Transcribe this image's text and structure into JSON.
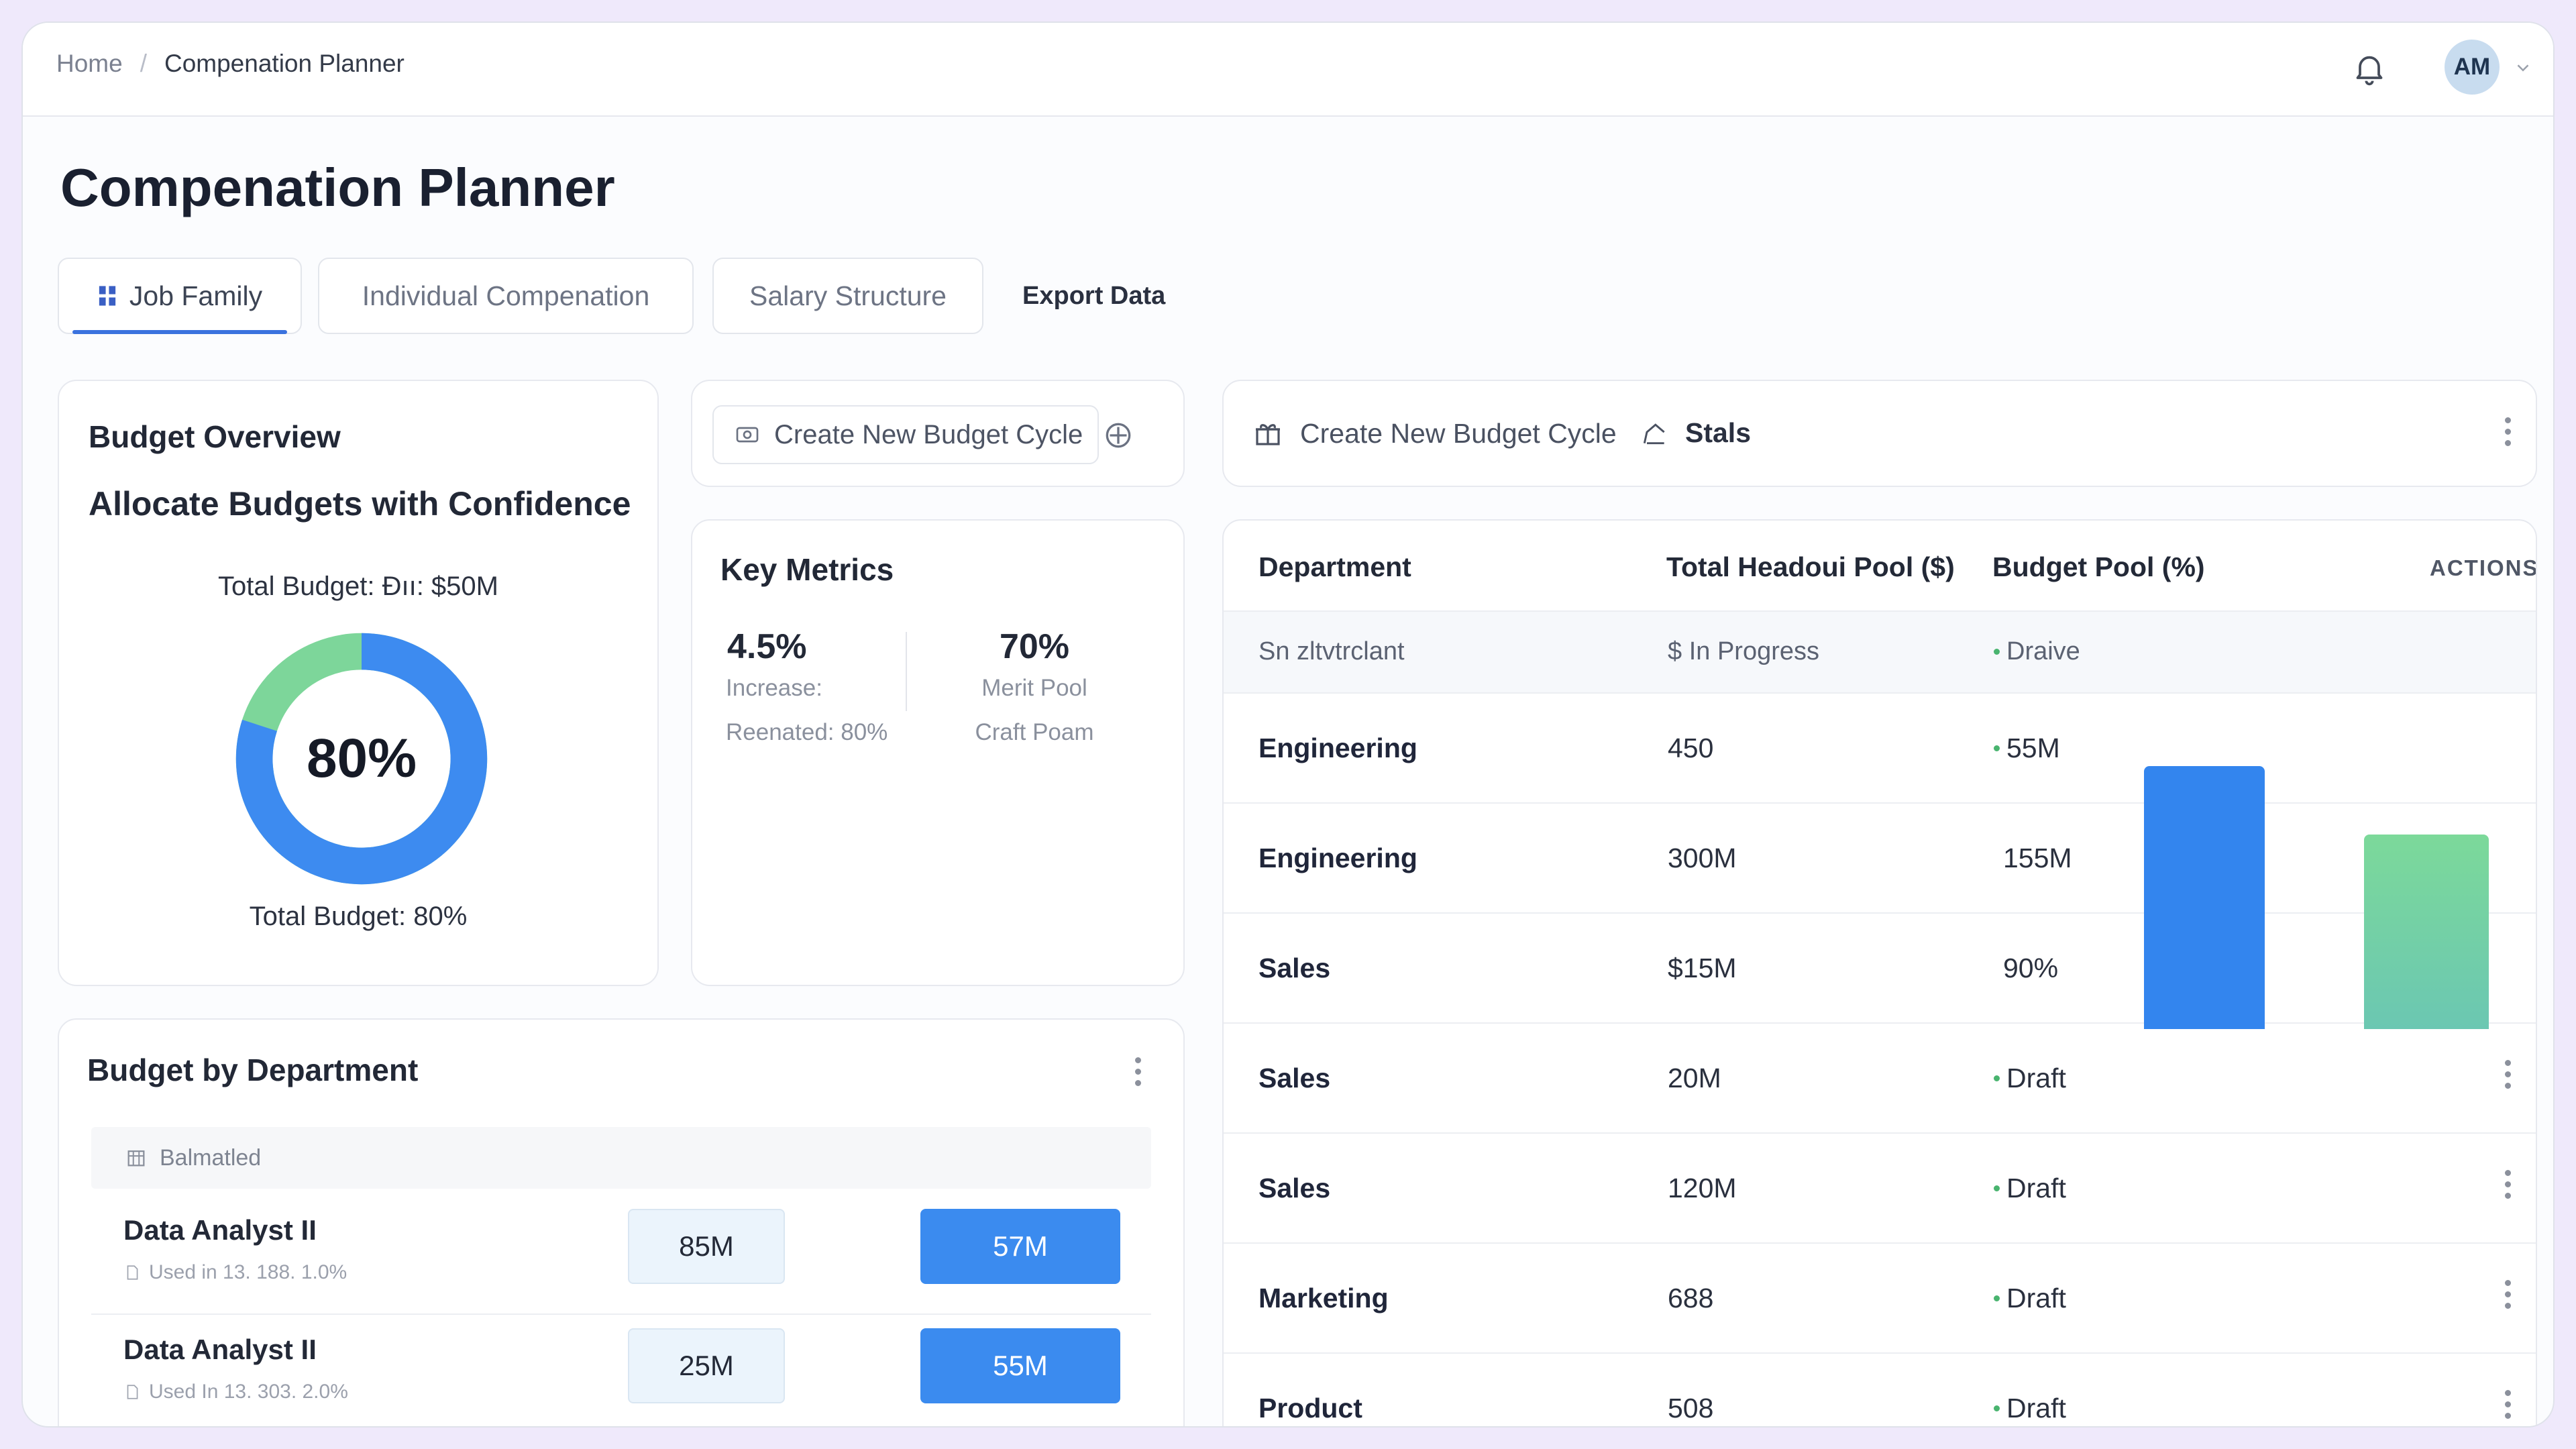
{
  "breadcrumb": {
    "home": "Home",
    "separator": "/",
    "current": "Compenation Planner"
  },
  "header": {
    "avatar_initials": "AM",
    "bell_icon": "bell-icon"
  },
  "page": {
    "title": "Compenation Planner"
  },
  "tabs": [
    {
      "label": "Job Family",
      "active": true,
      "icon": "grid-icon"
    },
    {
      "label": "Individual Compenation",
      "active": false
    },
    {
      "label": "Salary Structure",
      "active": false
    }
  ],
  "export_label": "Export Data",
  "budget_overview": {
    "title": "Budget Overview",
    "subtitle": "Allocate Budgets with Confidence",
    "total_label": "Total Budget: Đıı: $50M",
    "donut_value": "80%",
    "donut_fraction": 0.8,
    "footer": "Total Budget: 80%",
    "colors": {
      "primary": "#3d8bf0",
      "secondary": "#7dd69a"
    }
  },
  "create_cycle_small": {
    "label": "Create New Budget Cycle"
  },
  "key_metrics": {
    "title": "Key Metrics",
    "metric1": {
      "value": "4.5%",
      "label": "Increase:",
      "sub": "Reenated: 80%"
    },
    "metric2": {
      "value": "70%",
      "label": "Merit Pool",
      "sub": "Craft Poam"
    }
  },
  "budget_by_department": {
    "title": "Budget by Department",
    "header_label": "Balmatled",
    "rows": [
      {
        "name": "Data Analyst II",
        "meta": "Used in 13. 188. 1.0%",
        "left": "85M",
        "right": "57M"
      },
      {
        "name": "Data Analyst II",
        "meta": "Used In 13. 303. 2.0%",
        "left": "25M",
        "right": "55M"
      }
    ]
  },
  "right_panel": {
    "create_label": "Create New Budget Cycle",
    "stats_label": "Stals"
  },
  "table": {
    "columns": [
      "Department",
      "Total Headoui Pool ($)",
      "Budget Pool (%)",
      "ACTIONS"
    ],
    "subheader": {
      "dept": "Sn zltvtrclant",
      "pool": "$ In Progress",
      "budget": "Draive"
    },
    "rows": [
      {
        "dept": "Engineering",
        "pool": "450",
        "budget": "55M",
        "dot": true,
        "kebab": false
      },
      {
        "dept": "Engineering",
        "pool": "300M",
        "budget": "155M",
        "dot": false,
        "kebab": false
      },
      {
        "dept": "Sales",
        "pool": "$15M",
        "budget": "90%",
        "dot": false,
        "kebab": false
      },
      {
        "dept": "Sales",
        "pool": "20M",
        "budget": "Draft",
        "dot": true,
        "kebab": true
      },
      {
        "dept": "Sales",
        "pool": "120M",
        "budget": "Draft",
        "dot": true,
        "kebab": true
      },
      {
        "dept": "Marketing",
        "pool": "688",
        "budget": "Draft",
        "dot": true,
        "kebab": true
      },
      {
        "dept": "Product",
        "pool": "508",
        "budget": "Draft",
        "dot": true,
        "kebab": true
      }
    ],
    "bar_colors": {
      "blue": "#3385ee",
      "green": "#78d79a"
    }
  }
}
